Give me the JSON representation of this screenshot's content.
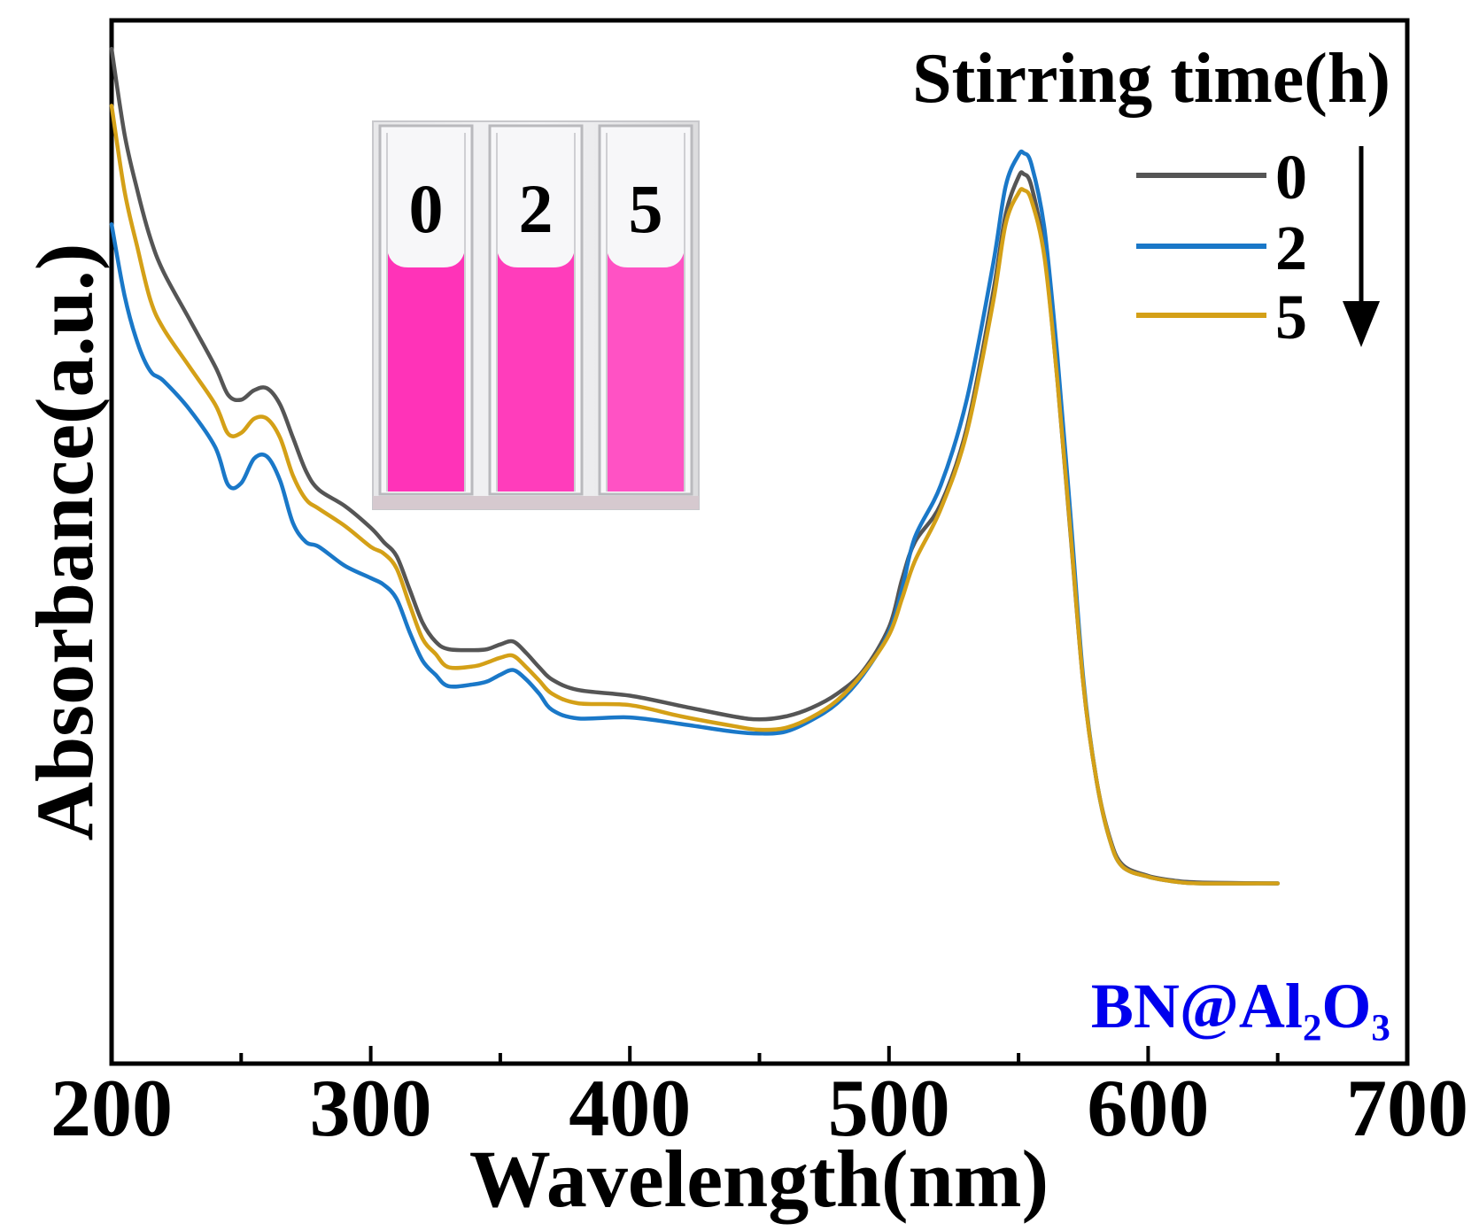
{
  "chart_data": {
    "type": "line",
    "xlabel": "Wavelength(nm)",
    "ylabel": "Absorbance(a.u.)",
    "xlim": [
      200,
      700
    ],
    "ylim": [
      0,
      1.1
    ],
    "x_ticks": [
      200,
      300,
      400,
      500,
      600,
      700
    ],
    "x_minor_ticks": [
      250,
      350,
      450,
      550,
      650
    ],
    "y_ticks_shown": false,
    "grid": false,
    "legend": {
      "title": "Stirring time(h)",
      "placement": "top-right",
      "arrow": "down"
    },
    "sample_label": "BN@Al₂O₃",
    "sample_label_color": "#0000ee",
    "series": [
      {
        "name": "0",
        "color": "#555555",
        "points": [
          [
            200,
            1.07
          ],
          [
            205,
            0.98
          ],
          [
            210,
            0.92
          ],
          [
            215,
            0.87
          ],
          [
            220,
            0.835
          ],
          [
            230,
            0.785
          ],
          [
            240,
            0.735
          ],
          [
            245,
            0.705
          ],
          [
            250,
            0.7
          ],
          [
            255,
            0.71
          ],
          [
            260,
            0.712
          ],
          [
            265,
            0.695
          ],
          [
            270,
            0.66
          ],
          [
            275,
            0.625
          ],
          [
            280,
            0.605
          ],
          [
            290,
            0.588
          ],
          [
            300,
            0.565
          ],
          [
            305,
            0.55
          ],
          [
            310,
            0.535
          ],
          [
            315,
            0.5
          ],
          [
            320,
            0.465
          ],
          [
            325,
            0.445
          ],
          [
            330,
            0.437
          ],
          [
            340,
            0.436
          ],
          [
            345,
            0.437
          ],
          [
            350,
            0.442
          ],
          [
            355,
            0.445
          ],
          [
            360,
            0.433
          ],
          [
            365,
            0.418
          ],
          [
            370,
            0.405
          ],
          [
            380,
            0.394
          ],
          [
            400,
            0.388
          ],
          [
            420,
            0.377
          ],
          [
            440,
            0.366
          ],
          [
            450,
            0.363
          ],
          [
            460,
            0.366
          ],
          [
            470,
            0.375
          ],
          [
            480,
            0.39
          ],
          [
            490,
            0.414
          ],
          [
            500,
            0.46
          ],
          [
            505,
            0.51
          ],
          [
            510,
            0.55
          ],
          [
            520,
            0.59
          ],
          [
            530,
            0.67
          ],
          [
            540,
            0.81
          ],
          [
            545,
            0.895
          ],
          [
            550,
            0.935
          ],
          [
            552,
            0.938
          ],
          [
            555,
            0.925
          ],
          [
            560,
            0.855
          ],
          [
            565,
            0.72
          ],
          [
            570,
            0.56
          ],
          [
            575,
            0.4
          ],
          [
            580,
            0.3
          ],
          [
            585,
            0.24
          ],
          [
            590,
            0.21
          ],
          [
            600,
            0.198
          ],
          [
            610,
            0.193
          ],
          [
            620,
            0.191
          ],
          [
            650,
            0.19
          ]
        ]
      },
      {
        "name": "2",
        "color": "#1a78c8",
        "points": [
          [
            200,
            0.885
          ],
          [
            205,
            0.81
          ],
          [
            210,
            0.76
          ],
          [
            215,
            0.73
          ],
          [
            220,
            0.72
          ],
          [
            230,
            0.69
          ],
          [
            240,
            0.65
          ],
          [
            245,
            0.61
          ],
          [
            250,
            0.612
          ],
          [
            255,
            0.638
          ],
          [
            260,
            0.64
          ],
          [
            265,
            0.615
          ],
          [
            270,
            0.57
          ],
          [
            275,
            0.55
          ],
          [
            280,
            0.545
          ],
          [
            290,
            0.525
          ],
          [
            300,
            0.512
          ],
          [
            305,
            0.505
          ],
          [
            310,
            0.49
          ],
          [
            315,
            0.455
          ],
          [
            320,
            0.425
          ],
          [
            325,
            0.41
          ],
          [
            330,
            0.398
          ],
          [
            340,
            0.4
          ],
          [
            345,
            0.403
          ],
          [
            350,
            0.41
          ],
          [
            355,
            0.415
          ],
          [
            360,
            0.405
          ],
          [
            365,
            0.39
          ],
          [
            370,
            0.373
          ],
          [
            380,
            0.364
          ],
          [
            400,
            0.365
          ],
          [
            420,
            0.358
          ],
          [
            440,
            0.35
          ],
          [
            450,
            0.348
          ],
          [
            460,
            0.35
          ],
          [
            470,
            0.362
          ],
          [
            480,
            0.38
          ],
          [
            490,
            0.41
          ],
          [
            500,
            0.455
          ],
          [
            505,
            0.5
          ],
          [
            510,
            0.555
          ],
          [
            520,
            0.61
          ],
          [
            530,
            0.7
          ],
          [
            540,
            0.84
          ],
          [
            545,
            0.925
          ],
          [
            550,
            0.958
          ],
          [
            552,
            0.96
          ],
          [
            555,
            0.948
          ],
          [
            560,
            0.88
          ],
          [
            565,
            0.745
          ],
          [
            570,
            0.58
          ],
          [
            575,
            0.405
          ],
          [
            580,
            0.3
          ],
          [
            585,
            0.238
          ],
          [
            590,
            0.208
          ],
          [
            600,
            0.197
          ],
          [
            610,
            0.192
          ],
          [
            620,
            0.19
          ],
          [
            650,
            0.19
          ]
        ]
      },
      {
        "name": "5",
        "color": "#d4a017",
        "points": [
          [
            200,
            1.01
          ],
          [
            205,
            0.92
          ],
          [
            210,
            0.86
          ],
          [
            215,
            0.805
          ],
          [
            220,
            0.775
          ],
          [
            230,
            0.735
          ],
          [
            240,
            0.695
          ],
          [
            245,
            0.664
          ],
          [
            250,
            0.665
          ],
          [
            255,
            0.68
          ],
          [
            260,
            0.68
          ],
          [
            265,
            0.66
          ],
          [
            270,
            0.62
          ],
          [
            275,
            0.595
          ],
          [
            280,
            0.585
          ],
          [
            290,
            0.567
          ],
          [
            300,
            0.545
          ],
          [
            305,
            0.538
          ],
          [
            310,
            0.522
          ],
          [
            315,
            0.484
          ],
          [
            320,
            0.448
          ],
          [
            325,
            0.432
          ],
          [
            330,
            0.418
          ],
          [
            340,
            0.419
          ],
          [
            345,
            0.423
          ],
          [
            350,
            0.428
          ],
          [
            355,
            0.43
          ],
          [
            360,
            0.418
          ],
          [
            365,
            0.404
          ],
          [
            370,
            0.39
          ],
          [
            380,
            0.38
          ],
          [
            400,
            0.378
          ],
          [
            420,
            0.366
          ],
          [
            440,
            0.356
          ],
          [
            450,
            0.352
          ],
          [
            460,
            0.354
          ],
          [
            470,
            0.365
          ],
          [
            480,
            0.383
          ],
          [
            490,
            0.412
          ],
          [
            500,
            0.452
          ],
          [
            505,
            0.49
          ],
          [
            510,
            0.53
          ],
          [
            520,
            0.585
          ],
          [
            530,
            0.665
          ],
          [
            540,
            0.8
          ],
          [
            545,
            0.885
          ],
          [
            550,
            0.918
          ],
          [
            552,
            0.921
          ],
          [
            555,
            0.91
          ],
          [
            560,
            0.85
          ],
          [
            565,
            0.72
          ],
          [
            570,
            0.562
          ],
          [
            575,
            0.4
          ],
          [
            580,
            0.3
          ],
          [
            585,
            0.238
          ],
          [
            590,
            0.208
          ],
          [
            600,
            0.197
          ],
          [
            610,
            0.192
          ],
          [
            620,
            0.19
          ],
          [
            650,
            0.19
          ]
        ]
      }
    ],
    "inset_photo": {
      "description_labels": [
        "0",
        "2",
        "5"
      ],
      "liquid_colors": [
        "#ff33b8",
        "#ff3dbb",
        "#ff52c4"
      ]
    }
  }
}
